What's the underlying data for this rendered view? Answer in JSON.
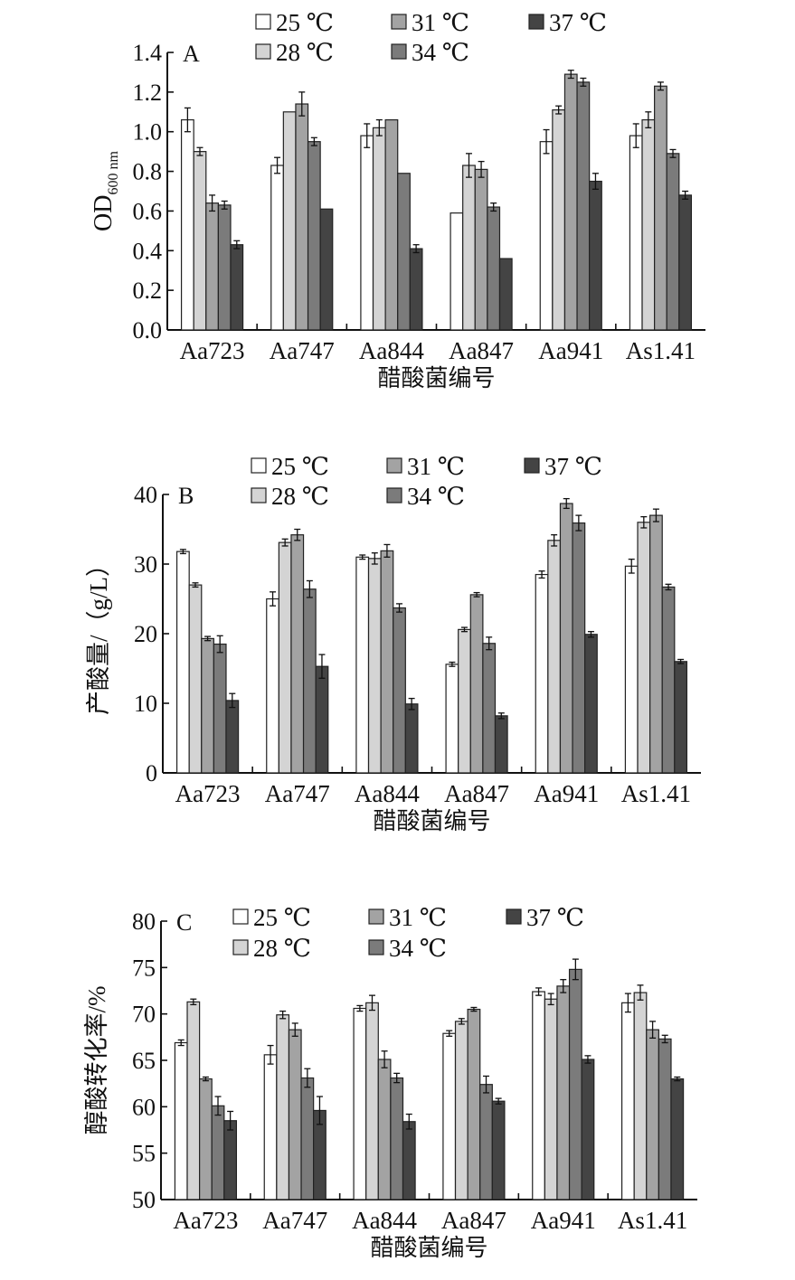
{
  "legend": [
    {
      "label": "25 ℃",
      "color": "#ffffff"
    },
    {
      "label": "28 ℃",
      "color": "#d4d4d4"
    },
    {
      "label": "31 ℃",
      "color": "#a3a3a3"
    },
    {
      "label": "34 ℃",
      "color": "#7b7b7b"
    },
    {
      "label": "37 ℃",
      "color": "#444444"
    }
  ],
  "chart_data": [
    {
      "type": "bar",
      "panel_label": "A",
      "xlabel": "醋酸菌编号",
      "ylabel_main": "OD",
      "ylabel_sub": "600 nm",
      "ylim": [
        0,
        1.4
      ],
      "yticks": [
        "0.0",
        "0.2",
        "0.4",
        "0.6",
        "0.8",
        "1.0",
        "1.2",
        "1.4"
      ],
      "categories": [
        "Aa723",
        "Aa747",
        "Aa844",
        "Aa847",
        "Aa941",
        "As1.41"
      ],
      "series": [
        {
          "name": "25 ℃",
          "values": [
            1.06,
            0.83,
            0.98,
            0.59,
            0.95,
            0.98
          ],
          "errors": [
            0.06,
            0.04,
            0.06,
            0.0,
            0.06,
            0.06
          ]
        },
        {
          "name": "28 ℃",
          "values": [
            0.9,
            1.1,
            1.02,
            0.83,
            1.11,
            1.06
          ],
          "errors": [
            0.02,
            0.0,
            0.04,
            0.06,
            0.02,
            0.04
          ]
        },
        {
          "name": "31 ℃",
          "values": [
            0.64,
            1.14,
            1.06,
            0.81,
            1.29,
            1.23
          ],
          "errors": [
            0.04,
            0.06,
            0.0,
            0.04,
            0.02,
            0.02
          ]
        },
        {
          "name": "34 ℃",
          "values": [
            0.63,
            0.95,
            0.79,
            0.62,
            1.25,
            0.89
          ],
          "errors": [
            0.02,
            0.02,
            0.0,
            0.02,
            0.02,
            0.02
          ]
        },
        {
          "name": "37 ℃",
          "values": [
            0.43,
            0.61,
            0.41,
            0.36,
            0.75,
            0.68
          ],
          "errors": [
            0.02,
            0.0,
            0.02,
            0.0,
            0.04,
            0.02
          ]
        }
      ]
    },
    {
      "type": "bar",
      "panel_label": "B",
      "xlabel": "醋酸菌编号",
      "ylabel": "产酸量/（g/L）",
      "ylim": [
        0,
        40
      ],
      "yticks": [
        "0",
        "10",
        "20",
        "30",
        "40"
      ],
      "categories": [
        "Aa723",
        "Aa747",
        "Aa844",
        "Aa847",
        "Aa941",
        "As1.41"
      ],
      "series": [
        {
          "name": "25 ℃",
          "values": [
            31.8,
            25.0,
            31.0,
            15.6,
            28.5,
            29.7
          ],
          "errors": [
            0.3,
            1.0,
            0.3,
            0.3,
            0.5,
            1.0
          ]
        },
        {
          "name": "28 ℃",
          "values": [
            27.0,
            33.1,
            30.8,
            20.6,
            33.4,
            36.0
          ],
          "errors": [
            0.3,
            0.5,
            0.8,
            0.3,
            0.8,
            0.8
          ]
        },
        {
          "name": "31 ℃",
          "values": [
            19.3,
            34.2,
            31.9,
            25.6,
            38.7,
            37.0
          ],
          "errors": [
            0.3,
            0.8,
            0.9,
            0.3,
            0.7,
            0.9
          ]
        },
        {
          "name": "34 ℃",
          "values": [
            18.5,
            26.4,
            23.7,
            18.6,
            35.9,
            26.7
          ],
          "errors": [
            1.2,
            1.2,
            0.6,
            0.9,
            1.1,
            0.4
          ]
        },
        {
          "name": "37 ℃",
          "values": [
            10.4,
            15.3,
            9.9,
            8.2,
            19.9,
            16.0
          ],
          "errors": [
            1.0,
            1.7,
            0.8,
            0.4,
            0.4,
            0.3
          ]
        }
      ]
    },
    {
      "type": "bar",
      "panel_label": "C",
      "xlabel": "醋酸菌编号",
      "ylabel": "醇酸转化率/%",
      "ylim": [
        50,
        80
      ],
      "yticks": [
        "50",
        "55",
        "60",
        "65",
        "70",
        "75",
        "80"
      ],
      "categories": [
        "Aa723",
        "Aa747",
        "Aa844",
        "Aa847",
        "Aa941",
        "As1.41"
      ],
      "series": [
        {
          "name": "25 ℃",
          "values": [
            66.9,
            65.6,
            70.6,
            67.9,
            72.4,
            71.2
          ],
          "errors": [
            0.3,
            1.0,
            0.3,
            0.3,
            0.4,
            1.0
          ]
        },
        {
          "name": "28 ℃",
          "values": [
            71.3,
            69.9,
            71.2,
            69.2,
            71.6,
            72.3
          ],
          "errors": [
            0.3,
            0.4,
            0.8,
            0.3,
            0.6,
            0.8
          ]
        },
        {
          "name": "31 ℃",
          "values": [
            63.0,
            68.3,
            65.1,
            70.5,
            73.0,
            68.3
          ],
          "errors": [
            0.2,
            0.7,
            0.9,
            0.2,
            0.7,
            0.9
          ]
        },
        {
          "name": "34 ℃",
          "values": [
            60.1,
            63.1,
            63.1,
            62.4,
            74.8,
            67.3
          ],
          "errors": [
            1.0,
            1.0,
            0.5,
            0.9,
            1.1,
            0.4
          ]
        },
        {
          "name": "37 ℃",
          "values": [
            58.5,
            59.6,
            58.4,
            60.6,
            65.1,
            63.0
          ],
          "errors": [
            1.0,
            1.5,
            0.8,
            0.3,
            0.4,
            0.2
          ]
        }
      ]
    }
  ]
}
